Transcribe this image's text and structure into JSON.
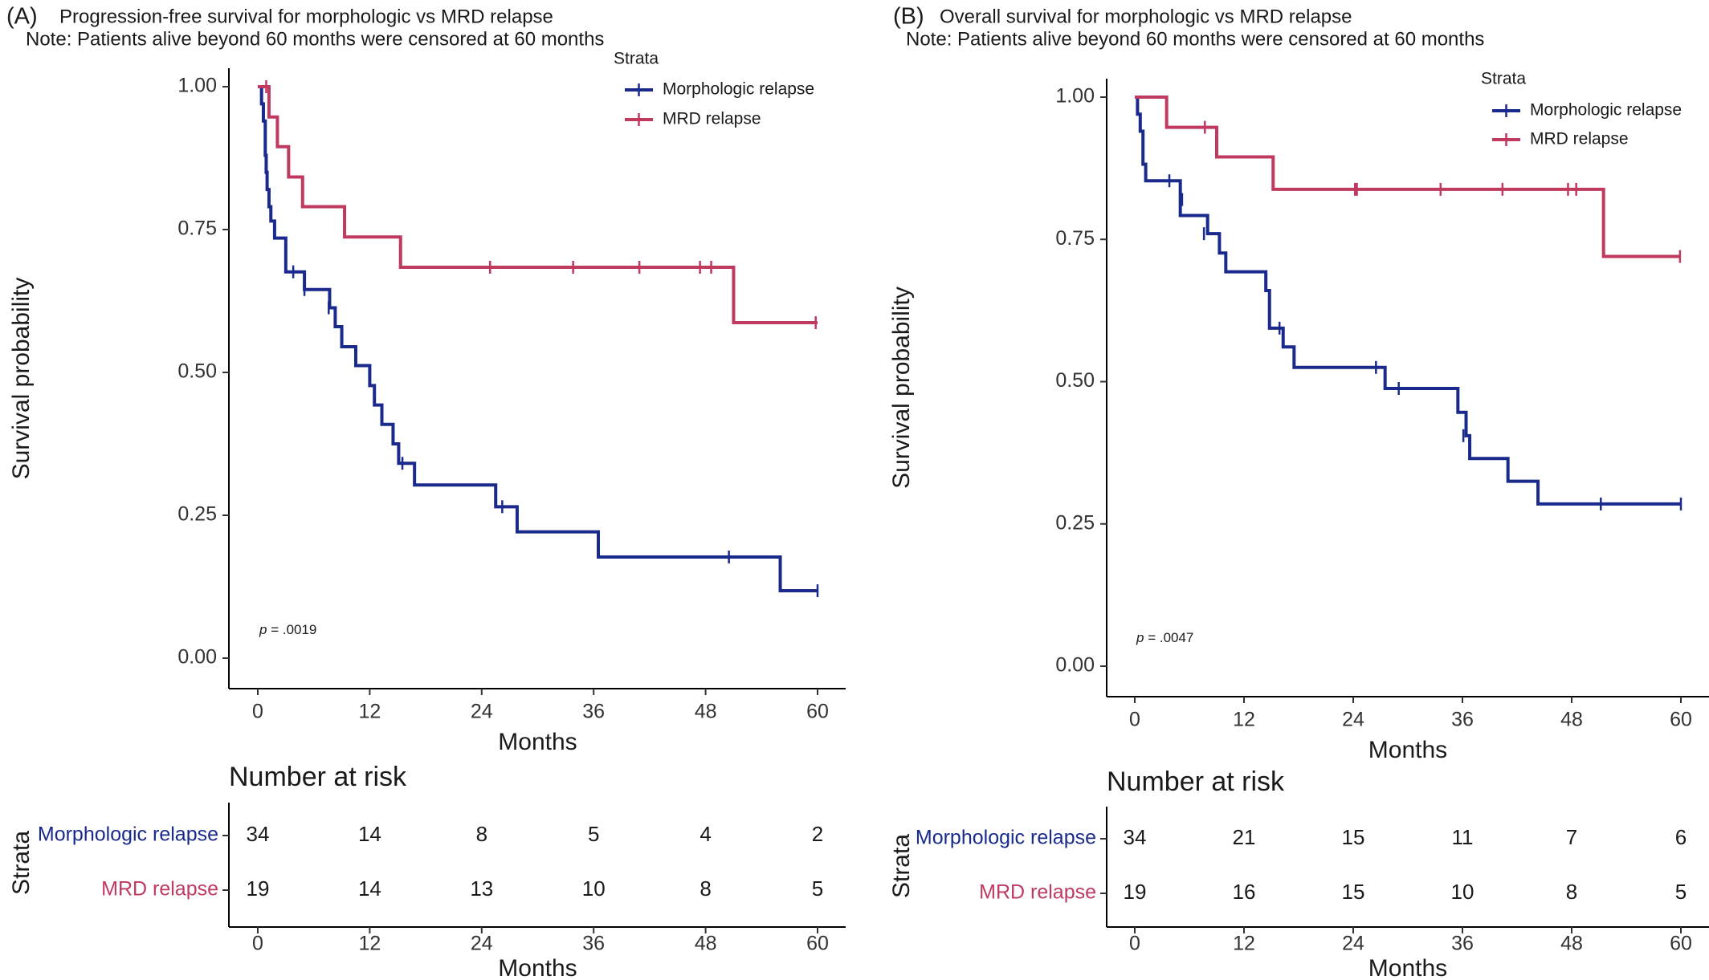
{
  "colors": {
    "morphologic": "#1a2a8c",
    "mrd": "#c0395f"
  },
  "chart_data": [
    {
      "type": "line",
      "panel_label": "(A)",
      "title": "Progression-free survival for morphologic vs MRD relapse",
      "note": "Note: Patients alive beyond 60 months were censored at 60 months",
      "xlabel": "Months",
      "ylabel": "Survival probability",
      "xlim": [
        0,
        60
      ],
      "ylim": [
        0,
        1
      ],
      "x_ticks": [
        0,
        12,
        24,
        36,
        48,
        60
      ],
      "x_tick_labels": [
        "0",
        "12",
        "24",
        "36",
        "48",
        "60"
      ],
      "y_ticks": [
        0,
        0.25,
        0.5,
        0.75,
        1.0
      ],
      "y_tick_labels": [
        "0.00",
        "0.25",
        "0.50",
        "0.75",
        "1.00"
      ],
      "legend": {
        "title": "Strata",
        "position": "top-right"
      },
      "p_value": {
        "label": "p",
        "text": " = .0019"
      },
      "series": [
        {
          "name": "Morphologic relapse",
          "color": "#1a2a8c",
          "steps": [
            [
              0,
              1.0
            ],
            [
              0.4,
              0.97
            ],
            [
              0.6,
              0.94
            ],
            [
              0.8,
              0.88
            ],
            [
              0.9,
              0.85
            ],
            [
              1.0,
              0.82
            ],
            [
              1.2,
              0.79
            ],
            [
              1.4,
              0.765
            ],
            [
              1.8,
              0.735
            ],
            [
              3.0,
              0.676
            ],
            [
              5.0,
              0.645
            ],
            [
              7.7,
              0.613
            ],
            [
              8.3,
              0.58
            ],
            [
              9.0,
              0.545
            ],
            [
              10.5,
              0.512
            ],
            [
              12.0,
              0.477
            ],
            [
              12.5,
              0.443
            ],
            [
              13.3,
              0.409
            ],
            [
              14.5,
              0.375
            ],
            [
              15.1,
              0.341
            ],
            [
              16.8,
              0.303
            ],
            [
              25.5,
              0.265
            ],
            [
              27.8,
              0.221
            ],
            [
              36.5,
              0.177
            ],
            [
              56.0,
              0.118
            ],
            [
              60,
              0.118
            ]
          ],
          "censors": [
            [
              3.8,
              0.676
            ],
            [
              5.0,
              0.645
            ],
            [
              7.6,
              0.613
            ],
            [
              15.5,
              0.341
            ],
            [
              26.2,
              0.265
            ],
            [
              50.5,
              0.177
            ],
            [
              60,
              0.118
            ]
          ]
        },
        {
          "name": "MRD relapse",
          "color": "#c0395f",
          "steps": [
            [
              0,
              1.0
            ],
            [
              1.2,
              0.947
            ],
            [
              2.1,
              0.895
            ],
            [
              3.3,
              0.842
            ],
            [
              4.8,
              0.79
            ],
            [
              9.3,
              0.737
            ],
            [
              15.3,
              0.684
            ],
            [
              51.0,
              0.587
            ],
            [
              60,
              0.587
            ]
          ],
          "censors": [
            [
              0.9,
              1.0
            ],
            [
              24.9,
              0.684
            ],
            [
              33.8,
              0.684
            ],
            [
              40.9,
              0.684
            ],
            [
              47.4,
              0.684
            ],
            [
              48.6,
              0.684
            ],
            [
              59.8,
              0.587
            ]
          ]
        }
      ],
      "risk_table": {
        "title": "Number at risk",
        "strata_label": "Strata",
        "xlabel": "Months",
        "x_tick_labels": [
          "0",
          "12",
          "24",
          "36",
          "48",
          "60"
        ],
        "rows": [
          {
            "name": "Morphologic relapse",
            "counts": [
              "34",
              "14",
              "8",
              "5",
              "4",
              "2"
            ]
          },
          {
            "name": "MRD relapse",
            "counts": [
              "19",
              "14",
              "13",
              "10",
              "8",
              "5"
            ]
          }
        ]
      }
    },
    {
      "type": "line",
      "panel_label": "(B)",
      "title": "Overall survival for morphologic vs MRD relapse",
      "note": "Note: Patients alive beyond 60 months were censored at 60 months",
      "xlabel": "Months",
      "ylabel": "Survival probability",
      "xlim": [
        0,
        60
      ],
      "ylim": [
        0,
        1
      ],
      "x_ticks": [
        0,
        12,
        24,
        36,
        48,
        60
      ],
      "x_tick_labels": [
        "0",
        "12",
        "24",
        "36",
        "48",
        "60"
      ],
      "y_ticks": [
        0,
        0.25,
        0.5,
        0.75,
        1.0
      ],
      "y_tick_labels": [
        "0.00",
        "0.25",
        "0.50",
        "0.75",
        "1.00"
      ],
      "legend": {
        "title": "Strata",
        "position": "top-right"
      },
      "p_value": {
        "label": "p",
        "text": " = .0047"
      },
      "series": [
        {
          "name": "Morphologic relapse",
          "color": "#1a2a8c",
          "steps": [
            [
              0,
              1.0
            ],
            [
              0.3,
              0.97
            ],
            [
              0.6,
              0.94
            ],
            [
              0.9,
              0.882
            ],
            [
              1.2,
              0.853
            ],
            [
              5.0,
              0.792
            ],
            [
              8.0,
              0.76
            ],
            [
              9.3,
              0.726
            ],
            [
              10.0,
              0.693
            ],
            [
              14.4,
              0.66
            ],
            [
              14.8,
              0.594
            ],
            [
              16.3,
              0.561
            ],
            [
              17.5,
              0.525
            ],
            [
              27.5,
              0.488
            ],
            [
              35.5,
              0.446
            ],
            [
              36.4,
              0.405
            ],
            [
              36.8,
              0.365
            ],
            [
              41.0,
              0.325
            ],
            [
              44.3,
              0.285
            ],
            [
              60,
              0.285
            ]
          ],
          "censors": [
            [
              3.8,
              0.853
            ],
            [
              5.2,
              0.82
            ],
            [
              7.6,
              0.76
            ],
            [
              15.9,
              0.594
            ],
            [
              26.5,
              0.525
            ],
            [
              29.0,
              0.488
            ],
            [
              36.1,
              0.405
            ],
            [
              51.2,
              0.285
            ],
            [
              60,
              0.285
            ]
          ]
        },
        {
          "name": "MRD relapse",
          "color": "#c0395f",
          "steps": [
            [
              0,
              1.0
            ],
            [
              3.5,
              0.947
            ],
            [
              9.0,
              0.895
            ],
            [
              15.2,
              0.838
            ],
            [
              51.5,
              0.72
            ],
            [
              60,
              0.72
            ]
          ],
          "censors": [
            [
              7.7,
              0.947
            ],
            [
              24.2,
              0.838
            ],
            [
              24.4,
              0.838
            ],
            [
              33.6,
              0.838
            ],
            [
              40.4,
              0.838
            ],
            [
              47.6,
              0.838
            ],
            [
              48.5,
              0.838
            ],
            [
              59.9,
              0.72
            ]
          ]
        }
      ],
      "risk_table": {
        "title": "Number at risk",
        "strata_label": "Strata",
        "xlabel": "Months",
        "x_tick_labels": [
          "0",
          "12",
          "24",
          "36",
          "48",
          "60"
        ],
        "rows": [
          {
            "name": "Morphologic relapse",
            "counts": [
              "34",
              "21",
              "15",
              "11",
              "7",
              "6"
            ]
          },
          {
            "name": "MRD relapse",
            "counts": [
              "19",
              "16",
              "15",
              "10",
              "8",
              "5"
            ]
          }
        ]
      }
    }
  ]
}
